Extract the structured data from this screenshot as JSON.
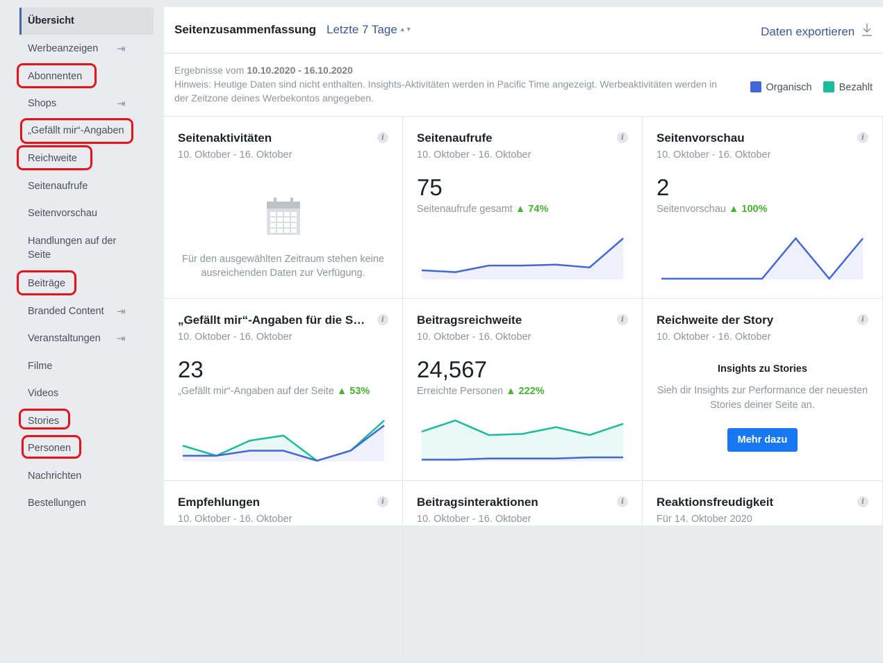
{
  "sidebar": {
    "items": [
      {
        "label": "Übersicht",
        "active": true
      },
      {
        "label": "Werbeanzeigen",
        "enter": true
      },
      {
        "label": "Abonnenten",
        "marked": true
      },
      {
        "label": "Shops",
        "enter": true
      },
      {
        "label": "„Gefällt mir“-Angaben",
        "marked": true
      },
      {
        "label": "Reichweite",
        "marked": true
      },
      {
        "label": "Seitenaufrufe"
      },
      {
        "label": "Seitenvorschau"
      },
      {
        "label": "Handlungen auf der Seite"
      },
      {
        "label": "Beiträge",
        "marked": true
      },
      {
        "label": "Branded Content",
        "enter": true
      },
      {
        "label": "Veranstaltungen",
        "enter": true
      },
      {
        "label": "Filme"
      },
      {
        "label": "Videos"
      },
      {
        "label": "Stories",
        "marked": true
      },
      {
        "label": "Personen",
        "marked": true
      },
      {
        "label": "Nachrichten"
      },
      {
        "label": "Bestellungen"
      }
    ]
  },
  "header": {
    "title": "Seitenzusammenfassung",
    "range": "Letzte 7 Tage",
    "export": "Daten exportieren"
  },
  "info": {
    "results_prefix": "Ergebnisse vom",
    "results_range": "10.10.2020 - 16.10.2020",
    "hint": "Hinweis: Heutige Daten sind nicht enthalten. Insights-Aktivitäten werden in Pacific Time angezeigt. Werbeaktivitäten werden in der Zeitzone deines Werbekontos angegeben."
  },
  "legend": {
    "organic": "Organisch",
    "paid": "Bezahlt",
    "organic_color": "#4267d6",
    "paid_color": "#1abc9c"
  },
  "cards": [
    {
      "title": "Seitenaktivitäten",
      "date": "10. Oktober - 16. Oktober",
      "nodata": "Für den ausgewählten Zeitraum stehen keine ausreichenden Daten zur Verfügung."
    },
    {
      "title": "Seitenaufrufe",
      "date": "10. Oktober - 16. Oktober",
      "value": "75",
      "sub": "Seitenaufrufe gesamt",
      "pct": "74%",
      "organic": [
        9,
        7,
        14,
        14,
        15,
        12,
        43
      ]
    },
    {
      "title": "Seitenvorschau",
      "date": "10. Oktober - 16. Oktober",
      "value": "2",
      "sub": "Seitenvorschau",
      "pct": "100%",
      "organic": [
        0,
        0,
        0,
        0,
        1,
        0,
        1
      ]
    },
    {
      "title": "„Gefällt mir“-Angaben für die Seite",
      "date": "10. Oktober - 16. Oktober",
      "value": "23",
      "sub": "„Gefällt mir“-Angaben auf der Seite",
      "pct": "53%",
      "organic": [
        6,
        6,
        12,
        12,
        0,
        12,
        42
      ],
      "paid": [
        18,
        6,
        24,
        30,
        0,
        12,
        48
      ]
    },
    {
      "title": "Beitragsreichweite",
      "date": "10. Oktober - 16. Oktober",
      "value": "24,567",
      "sub": "Erreichte Personen",
      "pct": "222%",
      "organic": [
        1,
        1,
        2,
        2,
        2,
        3,
        3
      ],
      "paid": [
        26,
        36,
        23,
        24,
        30,
        23,
        33
      ]
    },
    {
      "title": "Reichweite der Story",
      "date": "10. Oktober - 16. Oktober",
      "story_heading": "Insights zu Stories",
      "story_text": "Sieh dir Insights zur Performance der neuesten Stories deiner Seite an.",
      "button": "Mehr dazu"
    },
    {
      "title": "Empfehlungen",
      "date": "10. Oktober - 16. Oktober"
    },
    {
      "title": "Beitragsinteraktionen",
      "date": "10. Oktober - 16. Oktober"
    },
    {
      "title": "Reaktionsfreudigkeit",
      "date": "Für 14. Oktober 2020"
    }
  ]
}
